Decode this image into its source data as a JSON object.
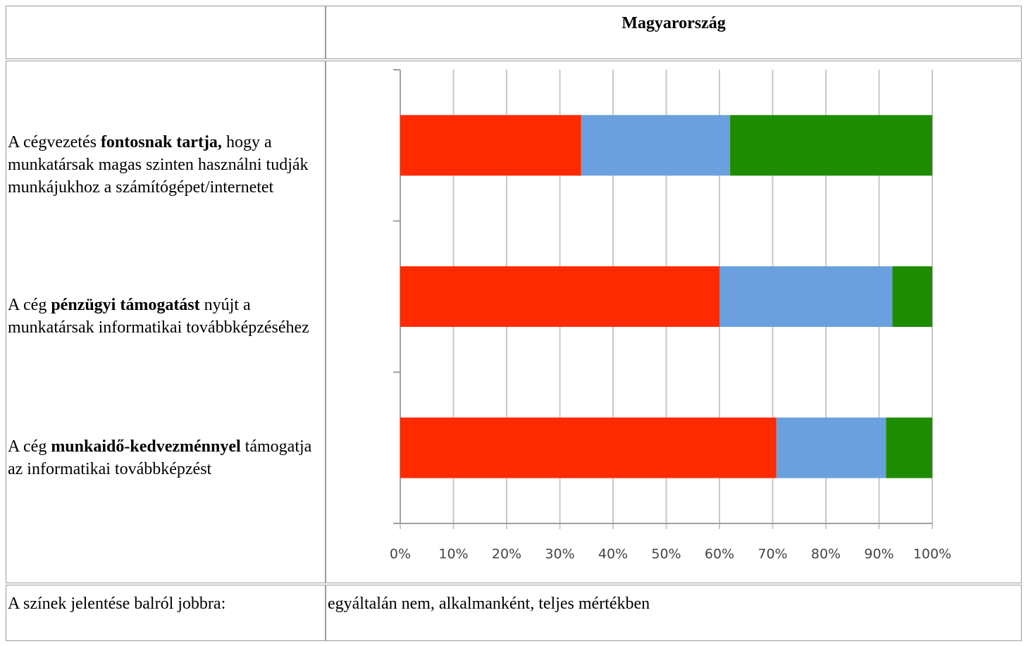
{
  "table": {
    "header": "Magyarország",
    "rows": [
      {
        "label": [
          {
            "text": "A cégvezetés "
          },
          {
            "text": "fontosnak tartja,",
            "bold": true
          },
          {
            "text": " hogy a munkatársak magas szinten használni tudják munkájukhoz a számítógépet/internetet"
          }
        ]
      },
      {
        "label": [
          {
            "text": "A cég "
          },
          {
            "text": "pénzügyi támogatást",
            "bold": true
          },
          {
            "text": " nyújt a munkatársak informatikai továbbképzéséhez"
          }
        ]
      },
      {
        "label": [
          {
            "text": "A cég "
          },
          {
            "text": "munkaidő-kedvezménnyel",
            "bold": true
          },
          {
            "text": " támogatja az informatikai továbbképzést"
          }
        ]
      }
    ],
    "legend_label": "A színek jelentése balról jobbra:",
    "legend_text": "egyáltalán nem, alkalmanként, teljes mértékben"
  },
  "chart_data": {
    "type": "stacked_barh",
    "series": [
      {
        "color": "#ff2a00",
        "values": [
          34,
          60,
          70.7
        ]
      },
      {
        "color": "#6aa0de",
        "values": [
          28,
          32.5,
          20.6
        ]
      },
      {
        "color": "#1e8c00",
        "values": [
          38,
          7.5,
          8.7
        ]
      }
    ],
    "xlim": [
      0,
      100
    ],
    "xticks": [
      {
        "value": 0,
        "label": "0%"
      },
      {
        "value": 10,
        "label": "10%"
      },
      {
        "value": 20,
        "label": "20%"
      },
      {
        "value": 30,
        "label": "30%"
      },
      {
        "value": 40,
        "label": "40%"
      },
      {
        "value": 50,
        "label": "50%"
      },
      {
        "value": 60,
        "label": "60%"
      },
      {
        "value": 70,
        "label": "70%"
      },
      {
        "value": 80,
        "label": "80%"
      },
      {
        "value": 90,
        "label": "90%"
      },
      {
        "value": 100,
        "label": "100%"
      }
    ],
    "grid": true
  }
}
